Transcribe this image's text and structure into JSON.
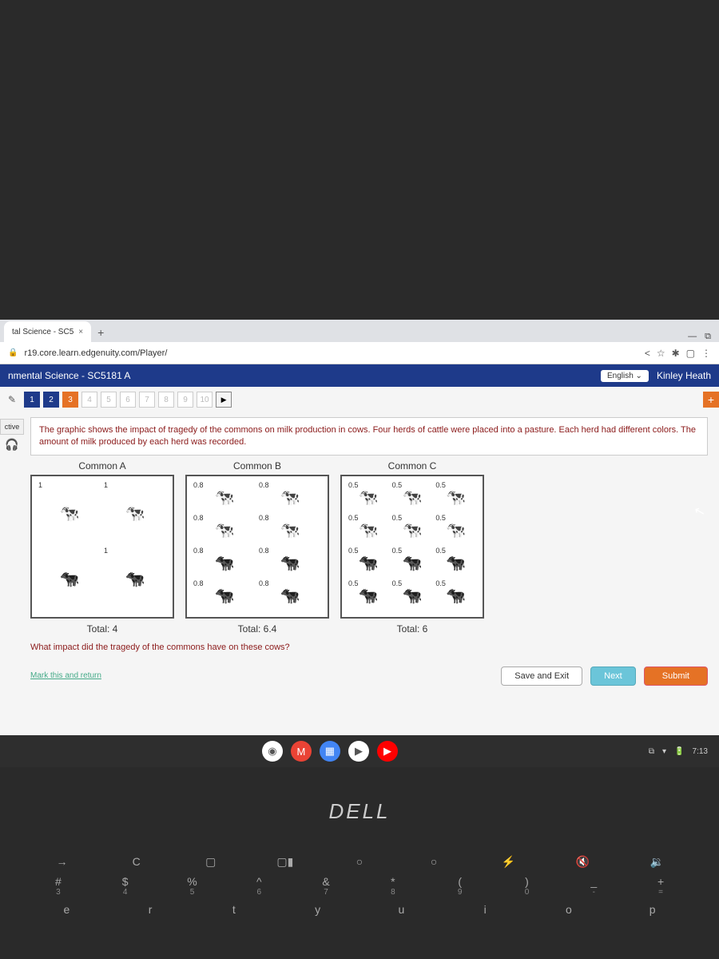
{
  "browser": {
    "tab_title": "tal Science - SC5",
    "url": "r19.core.learn.edgenuity.com/Player/",
    "new_tab": "+",
    "close": "×",
    "win_min": "—",
    "win_max": "⧉"
  },
  "header": {
    "course": "nmental Science - SC5181 A",
    "language": "English ⌄",
    "user": "Kinley Heath"
  },
  "nav": {
    "items": [
      {
        "n": "1",
        "cls": "done"
      },
      {
        "n": "2",
        "cls": "done"
      },
      {
        "n": "3",
        "cls": "current"
      },
      {
        "n": "4",
        "cls": "dim"
      },
      {
        "n": "5",
        "cls": "dim"
      },
      {
        "n": "6",
        "cls": "dim"
      },
      {
        "n": "7",
        "cls": "dim"
      },
      {
        "n": "8",
        "cls": "dim"
      },
      {
        "n": "9",
        "cls": "dim"
      },
      {
        "n": "10",
        "cls": "dim"
      }
    ],
    "play": "▶",
    "plus": "+"
  },
  "left": {
    "label": "ctive",
    "head": "🎧"
  },
  "prompt": "The graphic shows the impact of tragedy of the commons on milk production in cows. Four herds of cattle were placed into a pasture. Each herd had different colors. The amount of milk produced by each herd was recorded.",
  "commons": {
    "A": {
      "title": "Common A",
      "total": "Total: 4",
      "cows": [
        {
          "v": "1"
        },
        {
          "v": "1"
        },
        {
          "v": ""
        },
        {
          "v": "1"
        }
      ]
    },
    "B": {
      "title": "Common B",
      "total": "Total: 6.4",
      "cows": [
        {
          "v": "0.8"
        },
        {
          "v": "0.8"
        },
        {
          "v": "0.8"
        },
        {
          "v": "0.8"
        },
        {
          "v": "0.8"
        },
        {
          "v": "0.8"
        },
        {
          "v": "0.8"
        },
        {
          "v": "0.8"
        }
      ]
    },
    "C": {
      "title": "Common C",
      "total": "Total: 6",
      "cows": [
        {
          "v": "0.5"
        },
        {
          "v": "0.5"
        },
        {
          "v": "0.5"
        },
        {
          "v": "0.5"
        },
        {
          "v": "0.5"
        },
        {
          "v": "0.5"
        },
        {
          "v": "0.5"
        },
        {
          "v": "0.5"
        },
        {
          "v": "0.5"
        },
        {
          "v": "0.5"
        },
        {
          "v": "0.5"
        },
        {
          "v": "0.5"
        }
      ]
    }
  },
  "question": "What impact did the tragedy of the commons have on these cows?",
  "footer": {
    "mark": "Mark this and return",
    "save": "Save and Exit",
    "next": "Next",
    "submit": "Submit"
  },
  "taskbar": {
    "time": "7:13",
    "icons": [
      {
        "bg": "#fff",
        "t": "◉"
      },
      {
        "bg": "#ea4335",
        "t": "M"
      },
      {
        "bg": "#4285f4",
        "t": "▦"
      },
      {
        "bg": "#fff",
        "t": "▶"
      },
      {
        "bg": "#f00",
        "t": "▶"
      }
    ]
  },
  "dell": "DELL",
  "kb": {
    "row1": [
      "→",
      "C",
      "▢",
      "▢▮",
      "○",
      "○",
      "⚡",
      "🔇",
      "🔉"
    ],
    "row2": [
      {
        "t": "#",
        "s": "3"
      },
      {
        "t": "$",
        "s": "4"
      },
      {
        "t": "%",
        "s": "5"
      },
      {
        "t": "^",
        "s": "6"
      },
      {
        "t": "&",
        "s": "7"
      },
      {
        "t": "*",
        "s": "8"
      },
      {
        "t": "(",
        "s": "9"
      },
      {
        "t": ")",
        "s": "0"
      },
      {
        "t": "_",
        "s": "-"
      },
      {
        "t": "+",
        "s": "="
      }
    ],
    "row3": [
      "e",
      "r",
      "t",
      "y",
      "u",
      "i",
      "o",
      "p"
    ]
  }
}
